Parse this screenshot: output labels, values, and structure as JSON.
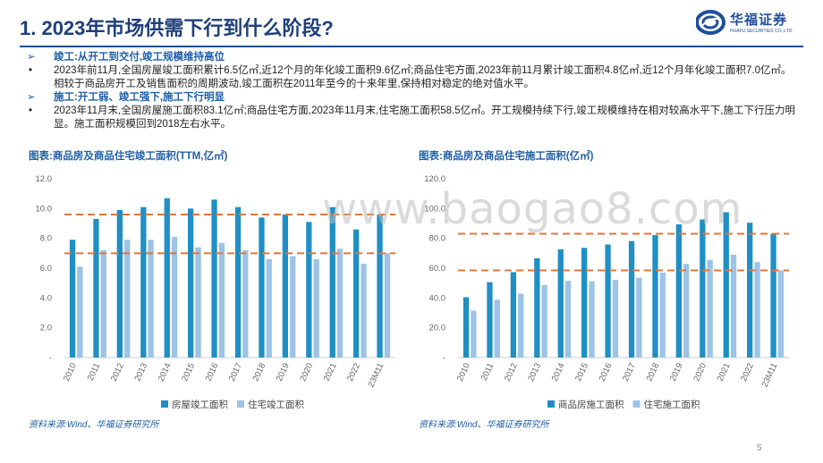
{
  "title": "1. 2023年市场供需下行到什么阶段?",
  "logo": {
    "name": "华福证券",
    "sub": "HUAFU SECURITIES CO.,LTD."
  },
  "text": {
    "sec1": {
      "marker": "➢",
      "text": "竣工:从开工到交付,竣工规模维持高位"
    },
    "bul1": {
      "marker": "•",
      "text": "2023年前11月,全国房屋竣工面积累计6.5亿㎡,近12个月的年化竣工面积9.6亿㎡;商品住宅方面,2023年前11月累计竣工面积4.8亿㎡,近12个月年化竣工面积7.0亿㎡。相较于商品房开工及销售面积的周期波动,竣工面积在2011年至今的十来年里,保持相对稳定的绝对值水平。"
    },
    "sec2": {
      "marker": "➢",
      "text": "施工:开工弱、竣工强下,施工下行明显"
    },
    "bul2": {
      "marker": "•",
      "text": "2023年11月末,全国房屋施工面积83.1亿㎡;商品住宅方面,2023年11月末,住宅施工面积58.5亿㎡。开工规模持续下行,竣工规模维持在相对较高水平下,施工下行压力明显。施工面积规模回到2018左右水平。"
    }
  },
  "chart_data": [
    {
      "type": "bar",
      "title": "图表:商品房及商品住宅竣工面积(TTM,亿㎡)",
      "categories": [
        "2010",
        "2011",
        "2012",
        "2013",
        "2014",
        "2015",
        "2016",
        "2017",
        "2018",
        "2019",
        "2020",
        "2021",
        "2022",
        "23M11"
      ],
      "series": [
        {
          "name": "房屋竣工面积",
          "values": [
            7.9,
            9.3,
            9.9,
            10.1,
            10.7,
            10.0,
            10.6,
            10.1,
            9.4,
            9.6,
            9.1,
            10.1,
            8.6,
            9.6
          ]
        },
        {
          "name": "住宅竣工面积",
          "values": [
            6.1,
            7.2,
            7.9,
            7.9,
            8.1,
            7.4,
            7.7,
            7.2,
            6.6,
            6.8,
            6.6,
            7.3,
            6.3,
            7.0
          ]
        }
      ],
      "reference_lines": [
        9.6,
        7.0
      ],
      "ylim": [
        0,
        12
      ],
      "yticks": [
        "-",
        "2.0",
        "4.0",
        "6.0",
        "8.0",
        "10.0",
        "12.0"
      ],
      "grid": false,
      "legend": "bottom",
      "colors": {
        "series1": "#1f8fc4",
        "series2": "#9dc3e6",
        "ref": "#e0763a"
      }
    },
    {
      "type": "bar",
      "title": "图表:商品房及商品住宅施工面积(亿㎡)",
      "categories": [
        "2010",
        "2011",
        "2012",
        "2013",
        "2014",
        "2015",
        "2016",
        "2017",
        "2018",
        "2019",
        "2020",
        "2021",
        "2022",
        "23M11"
      ],
      "series": [
        {
          "name": "商品房施工面积",
          "values": [
            40.5,
            50.6,
            57.3,
            66.6,
            72.6,
            73.6,
            75.9,
            78.2,
            82.2,
            89.4,
            92.7,
            97.5,
            90.5,
            83.1
          ]
        },
        {
          "name": "住宅施工面积",
          "values": [
            31.5,
            38.8,
            42.9,
            48.6,
            51.5,
            51.2,
            52.2,
            53.6,
            57.0,
            62.8,
            65.6,
            69.0,
            64.0,
            58.5
          ]
        }
      ],
      "reference_lines": [
        83.1,
        58.5
      ],
      "ylim": [
        0,
        120
      ],
      "yticks": [
        "-",
        "20.0",
        "40.0",
        "60.0",
        "80.0",
        "100.0",
        "120.0"
      ],
      "grid": false,
      "legend": "bottom",
      "colors": {
        "series1": "#1f8fc4",
        "series2": "#9dc3e6",
        "ref": "#e0763a"
      }
    }
  ],
  "source": "资料来源:Wind、华福证券研究所",
  "watermark": "www.baogao8.com",
  "page_number": "5"
}
